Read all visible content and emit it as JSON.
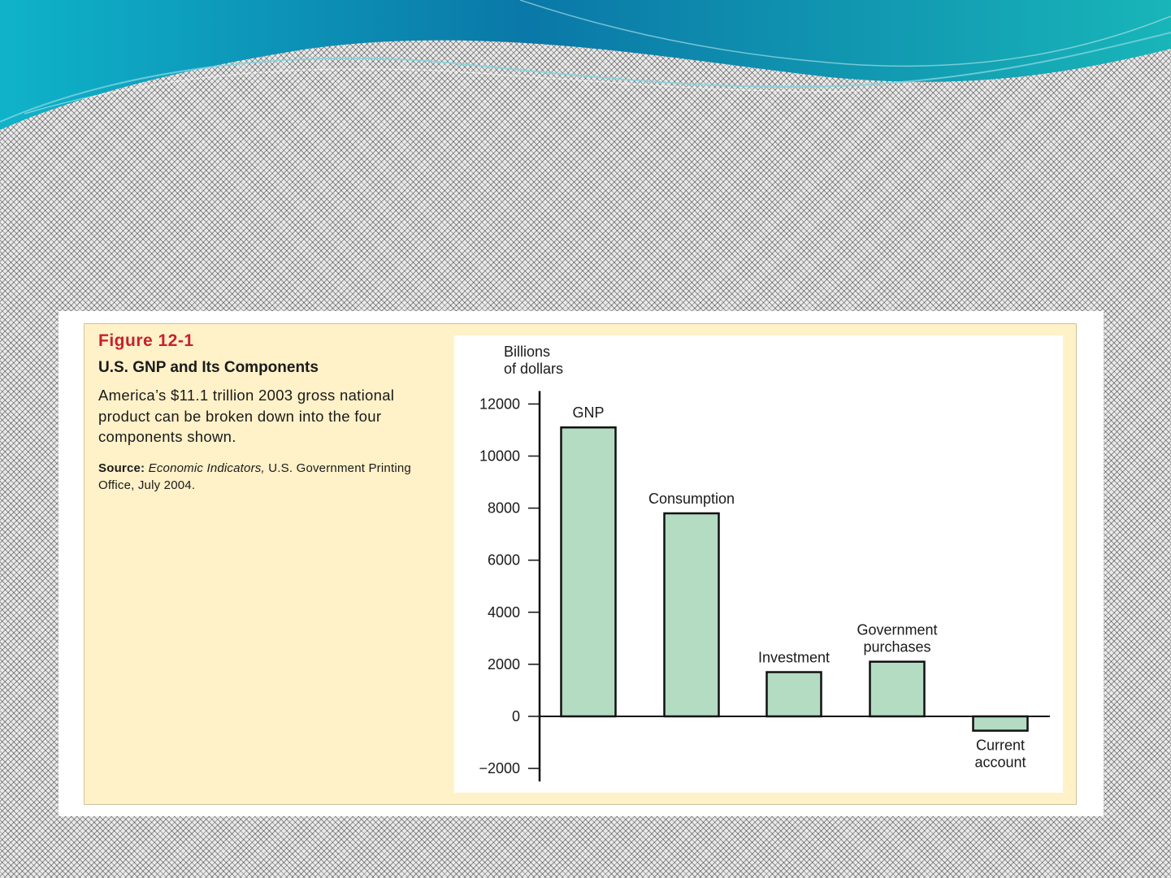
{
  "colors": {
    "wave_dark": "#0a6f9e",
    "wave_light": "#17b2c8",
    "panel_bg": "#fff1c8",
    "bar_fill": "#b3dcc2",
    "figure_label": "#c8202c"
  },
  "figure": {
    "label": "Figure 12-1",
    "title": "U.S. GNP and Its Components",
    "description": "America’s $11.1 trillion 2003 gross national product can be broken down into the four components shown.",
    "source_label": "Source:",
    "source_italic": "Economic Indicators,",
    "source_rest": "U.S. Government Printing Office, July 2004."
  },
  "chart_data": {
    "type": "bar",
    "ylabel": [
      "Billions",
      "of dollars"
    ],
    "ylim": [
      -2500,
      12500
    ],
    "yticks": [
      12000,
      10000,
      8000,
      6000,
      4000,
      2000,
      0,
      -2000
    ],
    "ytick_labels": [
      "12000",
      "10000",
      "8000",
      "6000",
      "4000",
      "2000",
      "0",
      "−2000"
    ],
    "categories": [
      "GNP",
      "Consumption",
      "Investment",
      "Government purchases",
      "Current account"
    ],
    "category_label_lines": [
      [
        "GNP"
      ],
      [
        "Consumption"
      ],
      [
        "Investment"
      ],
      [
        "Government",
        "purchases"
      ],
      [
        "Current",
        "account"
      ]
    ],
    "values": [
      11100,
      7800,
      1700,
      2100,
      -550
    ],
    "grid": false,
    "legend": "none"
  }
}
